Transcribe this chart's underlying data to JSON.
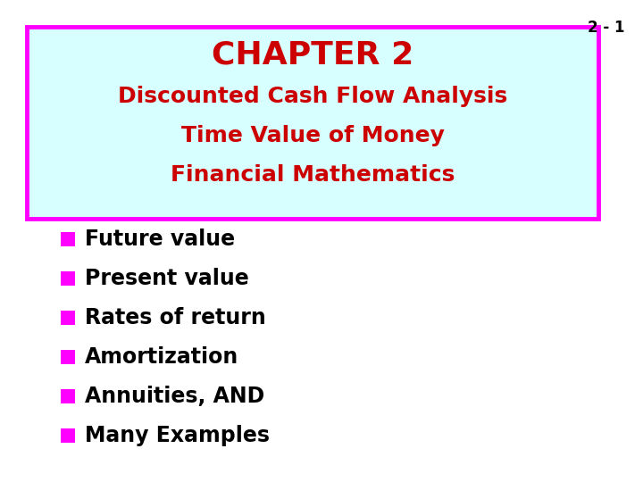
{
  "slide_number": "2 - 1",
  "title_lines": [
    "CHAPTER 2",
    "Discounted Cash Flow Analysis",
    "Time Value of Money",
    "Financial Mathematics"
  ],
  "title_color": "#cc0000",
  "title_bg_color": "#d8ffff",
  "title_border_color": "#ff00ff",
  "bullet_items": [
    "Future value",
    "Present value",
    "Rates of return",
    "Amortization",
    "Annuities, AND",
    "Many Examples"
  ],
  "bullet_color": "#ff00ff",
  "bullet_text_color": "#000000",
  "background_color": "#ffffff",
  "slide_number_color": "#000000",
  "title_fontsize_ch2": 26,
  "title_fontsize_sub": 18,
  "bullet_fontsize": 17,
  "slide_num_fontsize": 12
}
